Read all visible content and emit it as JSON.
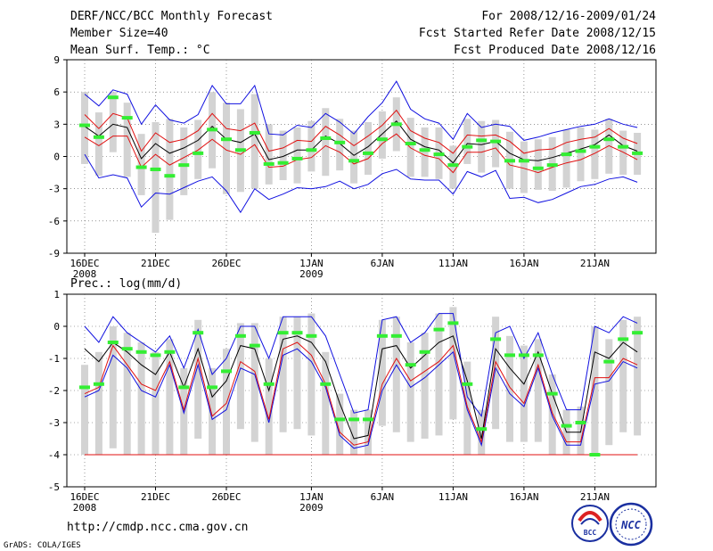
{
  "header": {
    "title": "DERF/NCC/BCC Monthly Forecast",
    "member_size": "Member Size=40",
    "variable": "Mean Surf. Temp.: °C",
    "period": "For 2008/12/16-2009/01/24",
    "started": "Fcst Started Refer Date 2008/12/15",
    "produced": "Fcst Produced Date 2008/12/16"
  },
  "footer": {
    "url": "http://cmdp.ncc.cma.gov.cn",
    "credit": "GrADS: COLA/IGES",
    "logo_bcc": "BCC",
    "logo_ncc": "NCC"
  },
  "colors": {
    "ensemble_max": "#1010e0",
    "ensemble_min": "#1010e0",
    "spread_upper": "#e01010",
    "spread_lower": "#e01010",
    "mean": "#000000",
    "observed": "#33ee33",
    "range_bar": "#d3d3d3"
  },
  "chart_data": [
    {
      "type": "line",
      "title": "Mean Surf. Temp.: °C",
      "ylim": [
        -9,
        9
      ],
      "yticks": [
        -9,
        -6,
        -3,
        0,
        3,
        6,
        9
      ],
      "x_labels": [
        {
          "day": 1,
          "label": "16DEC",
          "sub": "2008"
        },
        {
          "day": 6,
          "label": "21DEC",
          "sub": ""
        },
        {
          "day": 11,
          "label": "26DEC",
          "sub": ""
        },
        {
          "day": 17,
          "label": "1JAN",
          "sub": "2009"
        },
        {
          "day": 22,
          "label": "6JAN",
          "sub": ""
        },
        {
          "day": 27,
          "label": "11JAN",
          "sub": ""
        },
        {
          "day": 32,
          "label": "16JAN",
          "sub": ""
        },
        {
          "day": 37,
          "label": "21JAN",
          "sub": ""
        }
      ],
      "x": [
        1,
        2,
        3,
        4,
        5,
        6,
        7,
        8,
        9,
        10,
        11,
        12,
        13,
        14,
        15,
        16,
        17,
        18,
        19,
        20,
        21,
        22,
        23,
        24,
        25,
        26,
        27,
        28,
        29,
        30,
        31,
        32,
        33,
        34,
        35,
        36,
        37,
        38,
        39,
        40
      ],
      "series": [
        {
          "name": "ensemble_max",
          "values": [
            5.8,
            4.7,
            6.2,
            5.8,
            3.0,
            4.8,
            3.4,
            3.1,
            3.9,
            6.6,
            4.9,
            4.9,
            6.6,
            2.1,
            2.0,
            2.9,
            2.7,
            4.0,
            3.2,
            2.1,
            3.7,
            5.0,
            7.0,
            4.4,
            3.5,
            3.1,
            1.6,
            4.0,
            2.7,
            3.0,
            2.8,
            1.5,
            1.8,
            2.2,
            2.5,
            2.8,
            3.0,
            3.5,
            3.0,
            2.7
          ]
        },
        {
          "name": "spread_upper",
          "values": [
            3.9,
            2.6,
            4.0,
            3.6,
            0.5,
            2.2,
            1.3,
            1.6,
            2.4,
            4.0,
            2.6,
            2.4,
            3.1,
            0.5,
            0.8,
            1.5,
            1.4,
            2.8,
            2.0,
            1.0,
            1.9,
            2.9,
            4.3,
            2.4,
            1.7,
            1.3,
            0.3,
            2.0,
            1.9,
            2.0,
            1.4,
            0.3,
            0.6,
            0.7,
            1.3,
            1.6,
            1.8,
            2.6,
            1.7,
            1.2
          ]
        },
        {
          "name": "mean",
          "values": [
            2.8,
            1.9,
            3.0,
            2.7,
            -0.2,
            1.2,
            0.3,
            0.8,
            1.5,
            2.8,
            1.6,
            1.3,
            2.1,
            -0.3,
            0.0,
            0.6,
            0.6,
            1.9,
            1.2,
            0.1,
            0.9,
            2.1,
            3.3,
            1.6,
            0.9,
            0.6,
            -0.6,
            1.2,
            1.1,
            1.4,
            0.3,
            -0.3,
            -0.4,
            -0.1,
            0.3,
            0.7,
            1.1,
            2.0,
            1.0,
            0.5
          ]
        },
        {
          "name": "spread_lower",
          "values": [
            1.8,
            1.0,
            1.9,
            1.9,
            -1.0,
            0.2,
            -0.8,
            -0.1,
            0.6,
            1.6,
            0.6,
            0.2,
            1.1,
            -1.0,
            -0.9,
            -0.3,
            -0.1,
            1.0,
            0.4,
            -0.7,
            -0.2,
            1.2,
            2.1,
            0.8,
            0.1,
            -0.2,
            -1.5,
            0.4,
            0.4,
            0.8,
            -0.8,
            -1.1,
            -1.5,
            -1.0,
            -0.6,
            -0.3,
            0.3,
            1.0,
            0.4,
            -0.3
          ]
        },
        {
          "name": "ensemble_min",
          "values": [
            0.2,
            -2.0,
            -1.7,
            -2.0,
            -4.7,
            -3.4,
            -3.5,
            -2.9,
            -2.3,
            -1.9,
            -3.2,
            -5.2,
            -3.0,
            -4.0,
            -3.5,
            -2.9,
            -3.0,
            -2.8,
            -2.3,
            -3.0,
            -2.6,
            -1.6,
            -1.2,
            -2.1,
            -2.2,
            -2.2,
            -3.5,
            -1.4,
            -1.9,
            -1.3,
            -3.9,
            -3.8,
            -4.3,
            -4.0,
            -3.4,
            -2.8,
            -2.6,
            -2.1,
            -1.9,
            -2.4
          ]
        },
        {
          "name": "observed",
          "values": [
            2.9,
            1.8,
            5.5,
            3.6,
            -1.0,
            -1.2,
            -1.8,
            -0.8,
            0.3,
            2.5,
            1.6,
            0.6,
            2.2,
            -0.7,
            -0.6,
            -0.2,
            0.6,
            1.7,
            1.3,
            -0.4,
            0.3,
            1.6,
            3.0,
            1.2,
            0.6,
            0.2,
            -0.8,
            0.9,
            1.5,
            1.4,
            -0.4,
            -0.4,
            -1.1,
            -0.8,
            0.2,
            0.5,
            0.9,
            1.6,
            0.9,
            0.3
          ]
        },
        {
          "name": "range_top",
          "values": [
            6.0,
            4.1,
            6.0,
            5.0,
            2.1,
            3.2,
            3.5,
            2.7,
            3.4,
            6.0,
            5.0,
            4.4,
            5.8,
            3.0,
            2.4,
            2.7,
            3.3,
            4.5,
            3.5,
            2.4,
            3.2,
            4.2,
            5.5,
            3.6,
            2.7,
            2.7,
            1.0,
            3.5,
            3.3,
            3.4,
            2.3,
            1.4,
            1.6,
            1.8,
            2.5,
            2.7,
            2.5,
            3.5,
            2.4,
            2.2
          ]
        },
        {
          "name": "range_bottom",
          "values": [
            -0.7,
            -1.8,
            0.4,
            -1.9,
            -3.6,
            -7.1,
            -5.9,
            -3.6,
            -2.1,
            -1.1,
            -3.5,
            -3.3,
            -3.0,
            -2.6,
            -2.2,
            -2.5,
            -1.4,
            -1.8,
            -1.3,
            -2.5,
            -1.7,
            -0.2,
            0.5,
            -1.9,
            -1.9,
            -2.1,
            -3.0,
            -0.7,
            -1.5,
            -1.0,
            -3.0,
            -3.4,
            -3.1,
            -3.2,
            -2.9,
            -2.3,
            -2.1,
            -1.6,
            -1.7,
            -1.7
          ]
        }
      ]
    },
    {
      "type": "line",
      "title": "Prec.: log(mm/d)",
      "ylim": [
        -5,
        1
      ],
      "yticks": [
        -5,
        -4,
        -3,
        -2,
        -1,
        0,
        1
      ],
      "x_labels": [
        {
          "day": 1,
          "label": "16DEC",
          "sub": "2008"
        },
        {
          "day": 6,
          "label": "21DEC",
          "sub": ""
        },
        {
          "day": 11,
          "label": "26DEC",
          "sub": ""
        },
        {
          "day": 17,
          "label": "1JAN",
          "sub": "2009"
        },
        {
          "day": 22,
          "label": "6JAN",
          "sub": ""
        },
        {
          "day": 27,
          "label": "11JAN",
          "sub": ""
        },
        {
          "day": 32,
          "label": "16JAN",
          "sub": ""
        },
        {
          "day": 37,
          "label": "21JAN",
          "sub": ""
        }
      ],
      "x": [
        1,
        2,
        3,
        4,
        5,
        6,
        7,
        8,
        9,
        10,
        11,
        12,
        13,
        14,
        15,
        16,
        17,
        18,
        19,
        20,
        21,
        22,
        23,
        24,
        25,
        26,
        27,
        28,
        29,
        30,
        31,
        32,
        33,
        34,
        35,
        36,
        37,
        38,
        39,
        40
      ],
      "series": [
        {
          "name": "ensemble_max",
          "values": [
            0.0,
            -0.5,
            0.3,
            -0.2,
            -0.5,
            -0.8,
            -0.3,
            -1.3,
            -0.1,
            -1.5,
            -1.0,
            0.0,
            0.0,
            -1.0,
            0.3,
            0.3,
            0.3,
            -0.3,
            -1.5,
            -2.7,
            -2.6,
            0.2,
            0.3,
            -0.5,
            -0.2,
            0.4,
            0.4,
            -2.2,
            -2.8,
            -0.2,
            0.0,
            -1.0,
            -0.2,
            -1.5,
            -2.6,
            -2.6,
            0.0,
            -0.2,
            0.3,
            0.1
          ]
        },
        {
          "name": "mean",
          "values": [
            -0.7,
            -1.1,
            -0.5,
            -0.8,
            -1.2,
            -1.5,
            -0.8,
            -1.9,
            -0.7,
            -2.2,
            -1.7,
            -0.6,
            -0.7,
            -2.0,
            -0.4,
            -0.3,
            -0.5,
            -1.1,
            -2.4,
            -3.5,
            -3.4,
            -0.7,
            -0.6,
            -1.3,
            -0.9,
            -0.5,
            -0.3,
            -1.7,
            -3.5,
            -0.7,
            -1.3,
            -1.8,
            -0.8,
            -2.1,
            -3.3,
            -3.3,
            -0.8,
            -1.0,
            -0.5,
            -0.8
          ]
        },
        {
          "name": "spread_upper",
          "values": [
            -2.1,
            -1.9,
            -0.6,
            -1.2,
            -1.8,
            -2.0,
            -1.1,
            -2.6,
            -1.0,
            -2.8,
            -2.4,
            -1.1,
            -1.4,
            -2.9,
            -0.7,
            -0.5,
            -0.9,
            -1.8,
            -3.3,
            -3.7,
            -3.6,
            -1.8,
            -1.0,
            -1.7,
            -1.4,
            -1.1,
            -0.6,
            -2.5,
            -3.6,
            -1.1,
            -1.9,
            -2.4,
            -1.2,
            -2.7,
            -3.6,
            -3.6,
            -1.6,
            -1.6,
            -1.0,
            -1.2
          ]
        },
        {
          "name": "spread_lower",
          "values": [
            -4.0,
            -4.0,
            -4.0,
            -4.0,
            -4.0,
            -4.0,
            -4.0,
            -4.0,
            -4.0,
            -4.0,
            -4.0,
            -4.0,
            -4.0,
            -4.0,
            -4.0,
            -4.0,
            -4.0,
            -4.0,
            -4.0,
            -4.0,
            -4.0,
            -4.0,
            -4.0,
            -4.0,
            -4.0,
            -4.0,
            -4.0,
            -4.0,
            -4.0,
            -4.0,
            -4.0,
            -4.0,
            -4.0,
            -4.0,
            -4.0,
            -4.0,
            -4.0,
            -4.0,
            -4.0,
            -4.0
          ]
        },
        {
          "name": "ensemble_min",
          "values": [
            -2.2,
            -2.0,
            -0.9,
            -1.3,
            -2.0,
            -2.2,
            -1.2,
            -2.7,
            -1.2,
            -2.9,
            -2.6,
            -1.3,
            -1.5,
            -3.0,
            -0.9,
            -0.7,
            -1.1,
            -1.9,
            -3.4,
            -3.8,
            -3.7,
            -2.0,
            -1.2,
            -1.9,
            -1.6,
            -1.2,
            -0.8,
            -2.6,
            -3.7,
            -1.3,
            -2.1,
            -2.5,
            -1.3,
            -2.8,
            -3.7,
            -3.7,
            -1.8,
            -1.7,
            -1.1,
            -1.3
          ]
        },
        {
          "name": "observed",
          "values": [
            -1.9,
            -1.8,
            -0.5,
            -0.7,
            -0.8,
            -0.9,
            -0.8,
            -1.9,
            -0.2,
            -1.9,
            -1.4,
            -0.3,
            -0.6,
            -1.8,
            -0.2,
            -0.2,
            -0.3,
            -1.8,
            -2.9,
            -2.9,
            -2.9,
            -0.3,
            -0.3,
            -1.2,
            -0.8,
            -0.1,
            0.1,
            -1.8,
            -3.2,
            -0.4,
            -0.9,
            -0.9,
            -0.9,
            -2.1,
            -3.1,
            -3.0,
            -4.0,
            -1.1,
            -0.4,
            -0.2
          ]
        },
        {
          "name": "range_top",
          "values": [
            -1.2,
            -0.8,
            0.0,
            -0.2,
            -0.5,
            -0.8,
            -0.4,
            -1.3,
            0.2,
            -1.3,
            -0.7,
            0.1,
            0.1,
            -1.0,
            0.3,
            0.3,
            0.4,
            -0.8,
            -2.1,
            -2.6,
            -2.6,
            0.2,
            0.3,
            -0.5,
            -0.2,
            0.4,
            0.6,
            -1.1,
            -2.6,
            0.3,
            -0.3,
            -0.6,
            -0.4,
            -1.5,
            -2.6,
            -2.5,
            0.0,
            -0.4,
            0.2,
            0.3
          ]
        },
        {
          "name": "range_bottom",
          "values": [
            -4.0,
            -4.0,
            -3.8,
            -4.0,
            -4.0,
            -4.0,
            -4.0,
            -4.0,
            -3.5,
            -4.0,
            -4.0,
            -3.2,
            -3.6,
            -4.0,
            -3.3,
            -3.2,
            -3.4,
            -4.0,
            -4.0,
            -4.0,
            -4.0,
            -3.1,
            -3.3,
            -3.6,
            -3.5,
            -3.4,
            -2.9,
            -4.0,
            -4.0,
            -3.2,
            -3.6,
            -3.6,
            -3.6,
            -4.0,
            -4.0,
            -4.0,
            -4.0,
            -3.7,
            -3.3,
            -3.4
          ]
        }
      ]
    }
  ]
}
